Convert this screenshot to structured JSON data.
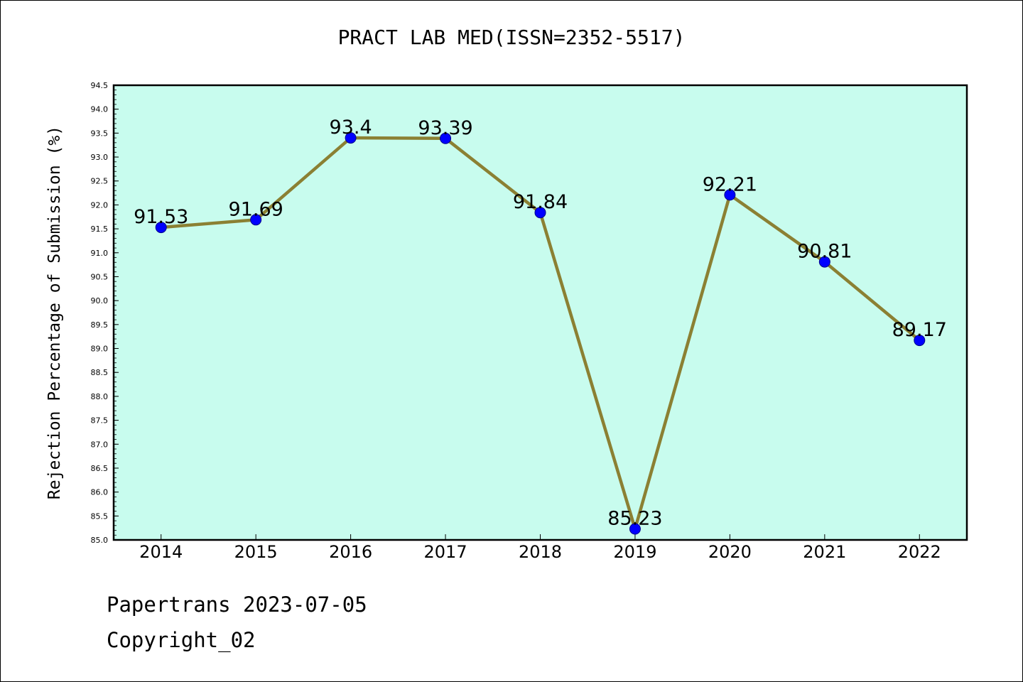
{
  "chart_data": {
    "type": "line",
    "title": "PRACT LAB MED(ISSN=2352-5517)",
    "xlabel": "",
    "ylabel": "Rejection Percentage of Submission (%)",
    "categories": [
      "2014",
      "2015",
      "2016",
      "2017",
      "2018",
      "2019",
      "2020",
      "2021",
      "2022"
    ],
    "series": [
      {
        "values": [
          91.53,
          91.69,
          93.4,
          93.39,
          91.84,
          85.23,
          92.21,
          90.81,
          89.17
        ]
      }
    ],
    "data_labels": [
      "91.53",
      "91.69",
      "93.4",
      "93.39",
      "91.84",
      "85.23",
      "92.21",
      "90.81",
      "89.17"
    ],
    "ylim": [
      85.0,
      94.5
    ],
    "y_ticks": [
      "85.0",
      "85.5",
      "86.0",
      "86.5",
      "87.0",
      "87.5",
      "88.0",
      "88.5",
      "89.0",
      "89.5",
      "90.0",
      "90.5",
      "91.0",
      "91.5",
      "92.0",
      "92.5",
      "93.0",
      "93.5",
      "94.0",
      "94.5"
    ],
    "grid": false,
    "colors": {
      "plot_background": "#c8fcee",
      "line": "#8b8033",
      "marker": "#0000ff"
    }
  },
  "footer": {
    "line1": "Papertrans 2023-07-05",
    "line2": "Copyright_02"
  }
}
